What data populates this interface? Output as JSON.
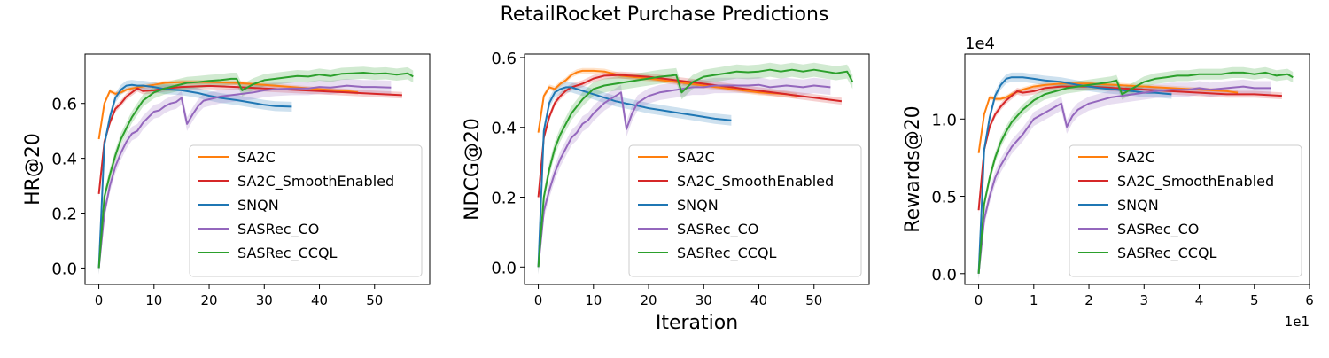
{
  "figure": {
    "title": "RetailRocket Purchase Predictions"
  },
  "chart_data": [
    {
      "type": "line",
      "ylabel": "HR@20",
      "xlabel": "",
      "xlim": [
        -2.5,
        60
      ],
      "ylim": [
        -0.06,
        0.78
      ],
      "xticks": [
        0,
        10,
        20,
        30,
        40,
        50
      ],
      "yticks": [
        0.0,
        0.2,
        0.4,
        0.6
      ],
      "ytick_labels": [
        "0.0",
        "0.2",
        "0.4",
        "0.6"
      ],
      "legend": "lower-right",
      "series": [
        {
          "name": "SA2C",
          "color": "#ff7f0e",
          "x": [
            0,
            1,
            2,
            3,
            4,
            5,
            6,
            8,
            10,
            12,
            15,
            20,
            25,
            30,
            35,
            40,
            45,
            47
          ],
          "y": [
            0.47,
            0.6,
            0.645,
            0.635,
            0.64,
            0.65,
            0.655,
            0.662,
            0.668,
            0.675,
            0.678,
            0.678,
            0.675,
            0.668,
            0.66,
            0.652,
            0.645,
            0.64
          ],
          "band": 0.008
        },
        {
          "name": "SA2C_SmoothEnabled",
          "color": "#d62728",
          "x": [
            0,
            1,
            2,
            3,
            4,
            5,
            6,
            7,
            8,
            10,
            12,
            15,
            20,
            25,
            30,
            35,
            40,
            45,
            50,
            55
          ],
          "y": [
            0.27,
            0.46,
            0.53,
            0.58,
            0.6,
            0.625,
            0.64,
            0.655,
            0.645,
            0.648,
            0.655,
            0.66,
            0.664,
            0.66,
            0.655,
            0.65,
            0.645,
            0.64,
            0.635,
            0.63
          ],
          "band": 0.012
        },
        {
          "name": "SNQN",
          "color": "#1f77b4",
          "x": [
            0,
            1,
            2,
            3,
            4,
            5,
            6,
            7,
            8,
            10,
            12,
            15,
            18,
            20,
            22,
            25,
            28,
            30,
            32,
            35
          ],
          "y": [
            0.0,
            0.45,
            0.55,
            0.62,
            0.65,
            0.665,
            0.668,
            0.665,
            0.665,
            0.66,
            0.652,
            0.648,
            0.638,
            0.628,
            0.62,
            0.612,
            0.602,
            0.595,
            0.59,
            0.588
          ],
          "band": 0.018
        },
        {
          "name": "SASRec_CO",
          "color": "#9467bd",
          "x": [
            0,
            1,
            2,
            3,
            4,
            5,
            6,
            7,
            8,
            9,
            10,
            11,
            12,
            13,
            14,
            15,
            16,
            17,
            18,
            19,
            20,
            22,
            24,
            26,
            28,
            30,
            32,
            35,
            38,
            40,
            42,
            45,
            48,
            50,
            53
          ],
          "y": [
            0.0,
            0.2,
            0.3,
            0.37,
            0.42,
            0.46,
            0.49,
            0.5,
            0.53,
            0.55,
            0.57,
            0.575,
            0.59,
            0.6,
            0.605,
            0.62,
            0.525,
            0.56,
            0.59,
            0.61,
            0.615,
            0.625,
            0.63,
            0.635,
            0.64,
            0.648,
            0.652,
            0.655,
            0.655,
            0.66,
            0.658,
            0.665,
            0.66,
            0.66,
            0.658
          ],
          "band": 0.025
        },
        {
          "name": "SASRec_CCQL",
          "color": "#2ca02c",
          "x": [
            0,
            1,
            2,
            3,
            4,
            5,
            6,
            7,
            8,
            10,
            12,
            14,
            16,
            18,
            20,
            22,
            24,
            25,
            26,
            28,
            30,
            32,
            34,
            36,
            38,
            40,
            42,
            44,
            46,
            48,
            50,
            52,
            54,
            56,
            57
          ],
          "y": [
            0.0,
            0.26,
            0.34,
            0.41,
            0.47,
            0.51,
            0.55,
            0.58,
            0.61,
            0.64,
            0.655,
            0.665,
            0.675,
            0.678,
            0.682,
            0.685,
            0.69,
            0.69,
            0.648,
            0.67,
            0.685,
            0.69,
            0.695,
            0.7,
            0.698,
            0.705,
            0.7,
            0.708,
            0.71,
            0.712,
            0.708,
            0.71,
            0.705,
            0.71,
            0.698
          ],
          "band": 0.022
        }
      ]
    },
    {
      "type": "line",
      "ylabel": "NDCG@20",
      "xlabel": "Iteration",
      "xlim": [
        -2.5,
        60
      ],
      "ylim": [
        -0.05,
        0.61
      ],
      "xticks": [
        0,
        10,
        20,
        30,
        40,
        50
      ],
      "yticks": [
        0.0,
        0.2,
        0.4,
        0.6
      ],
      "ytick_labels": [
        "0.0",
        "0.2",
        "0.4",
        "0.6"
      ],
      "legend": "lower-right",
      "series": [
        {
          "name": "SA2C",
          "color": "#ff7f0e",
          "x": [
            0,
            1,
            2,
            3,
            4,
            5,
            6,
            7,
            8,
            10,
            12,
            15,
            20,
            25,
            30,
            35,
            40,
            45,
            47
          ],
          "y": [
            0.385,
            0.49,
            0.515,
            0.51,
            0.525,
            0.535,
            0.55,
            0.558,
            0.562,
            0.562,
            0.56,
            0.548,
            0.54,
            0.53,
            0.52,
            0.51,
            0.5,
            0.495,
            0.49
          ],
          "band": 0.008
        },
        {
          "name": "SA2C_SmoothEnabled",
          "color": "#d62728",
          "x": [
            0,
            1,
            2,
            3,
            4,
            5,
            6,
            7,
            8,
            10,
            12,
            15,
            20,
            25,
            30,
            35,
            40,
            45,
            50,
            55
          ],
          "y": [
            0.2,
            0.37,
            0.43,
            0.47,
            0.49,
            0.505,
            0.515,
            0.52,
            0.525,
            0.54,
            0.548,
            0.55,
            0.545,
            0.535,
            0.525,
            0.515,
            0.505,
            0.495,
            0.485,
            0.475
          ],
          "band": 0.01
        },
        {
          "name": "SNQN",
          "color": "#1f77b4",
          "x": [
            0,
            1,
            2,
            3,
            4,
            5,
            6,
            8,
            10,
            12,
            14,
            16,
            18,
            20,
            22,
            24,
            26,
            28,
            30,
            32,
            35
          ],
          "y": [
            0.0,
            0.39,
            0.47,
            0.5,
            0.51,
            0.515,
            0.515,
            0.505,
            0.495,
            0.485,
            0.475,
            0.468,
            0.462,
            0.455,
            0.45,
            0.445,
            0.44,
            0.435,
            0.43,
            0.425,
            0.42
          ],
          "band": 0.015
        },
        {
          "name": "SASRec_CO",
          "color": "#9467bd",
          "x": [
            0,
            1,
            2,
            3,
            4,
            5,
            6,
            7,
            8,
            9,
            10,
            11,
            12,
            13,
            14,
            15,
            16,
            17,
            18,
            19,
            20,
            22,
            24,
            26,
            28,
            30,
            32,
            35,
            38,
            40,
            42,
            45,
            48,
            50,
            53
          ],
          "y": [
            0.0,
            0.16,
            0.22,
            0.27,
            0.31,
            0.34,
            0.37,
            0.385,
            0.41,
            0.42,
            0.44,
            0.455,
            0.47,
            0.48,
            0.49,
            0.5,
            0.395,
            0.44,
            0.47,
            0.48,
            0.49,
            0.5,
            0.505,
            0.51,
            0.515,
            0.515,
            0.52,
            0.52,
            0.52,
            0.522,
            0.515,
            0.52,
            0.515,
            0.52,
            0.515
          ],
          "band": 0.022
        },
        {
          "name": "SASRec_CCQL",
          "color": "#2ca02c",
          "x": [
            0,
            1,
            2,
            3,
            4,
            5,
            6,
            7,
            8,
            10,
            12,
            14,
            16,
            18,
            20,
            22,
            24,
            25,
            26,
            28,
            30,
            32,
            34,
            36,
            38,
            40,
            42,
            44,
            46,
            48,
            50,
            52,
            54,
            56,
            57
          ],
          "y": [
            0.0,
            0.2,
            0.28,
            0.34,
            0.38,
            0.41,
            0.44,
            0.46,
            0.48,
            0.51,
            0.52,
            0.525,
            0.53,
            0.535,
            0.54,
            0.545,
            0.548,
            0.55,
            0.5,
            0.53,
            0.545,
            0.55,
            0.555,
            0.56,
            0.558,
            0.56,
            0.565,
            0.56,
            0.565,
            0.56,
            0.565,
            0.56,
            0.555,
            0.56,
            0.53
          ],
          "band": 0.02
        }
      ]
    },
    {
      "type": "line",
      "ylabel": "Rewards@20",
      "xlabel": "",
      "offset_text_y": "1e4",
      "offset_text_x": "1e1",
      "xlim": [
        -2.5,
        60
      ],
      "ylim": [
        -0.07,
        1.42
      ],
      "xticks": [
        0,
        10,
        20,
        30,
        40,
        50,
        60
      ],
      "xtick_labels": [
        "0",
        "1",
        "2",
        "3",
        "4",
        "5",
        "6"
      ],
      "yticks": [
        0.0,
        0.5,
        1.0
      ],
      "ytick_labels": [
        "0.0",
        "0.5",
        "1.0"
      ],
      "legend": "lower-right",
      "series": [
        {
          "name": "SA2C",
          "color": "#ff7f0e",
          "x": [
            0,
            1,
            2,
            3,
            4,
            5,
            6,
            8,
            10,
            12,
            15,
            20,
            25,
            30,
            35,
            40,
            45,
            47
          ],
          "y": [
            0.78,
            1.03,
            1.14,
            1.13,
            1.13,
            1.14,
            1.16,
            1.19,
            1.21,
            1.22,
            1.23,
            1.23,
            1.22,
            1.21,
            1.2,
            1.19,
            1.18,
            1.17
          ],
          "band": 0.015
        },
        {
          "name": "SA2C_SmoothEnabled",
          "color": "#d62728",
          "x": [
            0,
            1,
            2,
            3,
            4,
            5,
            6,
            7,
            8,
            10,
            12,
            15,
            20,
            25,
            30,
            35,
            40,
            45,
            50,
            55
          ],
          "y": [
            0.41,
            0.8,
            0.95,
            1.03,
            1.08,
            1.12,
            1.15,
            1.18,
            1.17,
            1.18,
            1.2,
            1.21,
            1.21,
            1.2,
            1.19,
            1.18,
            1.17,
            1.16,
            1.16,
            1.15
          ],
          "band": 0.022
        },
        {
          "name": "SNQN",
          "color": "#1f77b4",
          "x": [
            0,
            1,
            2,
            3,
            4,
            5,
            6,
            7,
            8,
            10,
            12,
            15,
            18,
            20,
            22,
            25,
            28,
            30,
            32,
            35
          ],
          "y": [
            0.0,
            0.8,
            1.01,
            1.15,
            1.22,
            1.26,
            1.27,
            1.27,
            1.27,
            1.26,
            1.25,
            1.24,
            1.22,
            1.21,
            1.2,
            1.19,
            1.18,
            1.17,
            1.17,
            1.16
          ],
          "band": 0.03
        },
        {
          "name": "SASRec_CO",
          "color": "#9467bd",
          "x": [
            0,
            1,
            2,
            3,
            4,
            5,
            6,
            7,
            8,
            9,
            10,
            11,
            12,
            13,
            14,
            15,
            16,
            17,
            18,
            19,
            20,
            22,
            24,
            26,
            28,
            30,
            32,
            35,
            38,
            40,
            42,
            45,
            48,
            50,
            53
          ],
          "y": [
            0.0,
            0.35,
            0.5,
            0.62,
            0.7,
            0.76,
            0.82,
            0.86,
            0.9,
            0.95,
            1.0,
            1.02,
            1.04,
            1.06,
            1.08,
            1.1,
            0.95,
            1.02,
            1.06,
            1.08,
            1.1,
            1.12,
            1.14,
            1.15,
            1.16,
            1.17,
            1.18,
            1.19,
            1.19,
            1.2,
            1.19,
            1.2,
            1.21,
            1.2,
            1.2
          ],
          "band": 0.045
        },
        {
          "name": "SASRec_CCQL",
          "color": "#2ca02c",
          "x": [
            0,
            1,
            2,
            3,
            4,
            5,
            6,
            7,
            8,
            10,
            12,
            14,
            16,
            18,
            20,
            22,
            24,
            25,
            26,
            28,
            30,
            32,
            34,
            36,
            38,
            40,
            42,
            44,
            46,
            48,
            50,
            52,
            54,
            56,
            57
          ],
          "y": [
            0.0,
            0.45,
            0.62,
            0.75,
            0.85,
            0.92,
            0.98,
            1.02,
            1.06,
            1.12,
            1.16,
            1.18,
            1.2,
            1.21,
            1.22,
            1.23,
            1.24,
            1.25,
            1.16,
            1.2,
            1.24,
            1.26,
            1.27,
            1.28,
            1.28,
            1.29,
            1.29,
            1.29,
            1.3,
            1.3,
            1.29,
            1.3,
            1.28,
            1.29,
            1.27
          ],
          "band": 0.035
        }
      ]
    }
  ]
}
